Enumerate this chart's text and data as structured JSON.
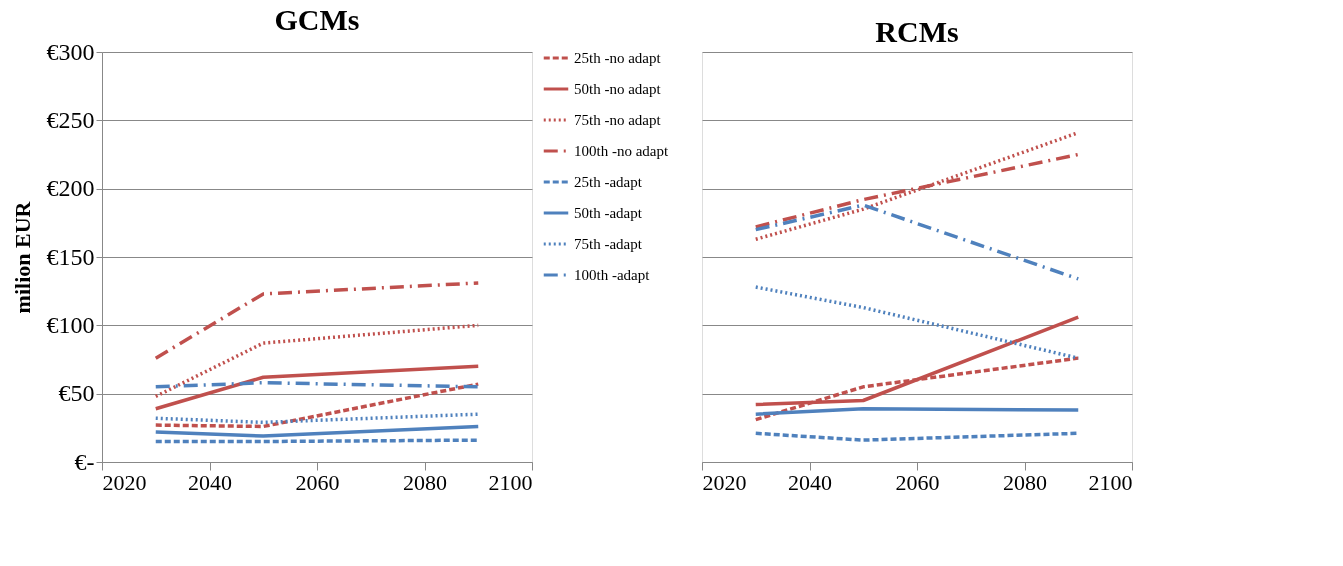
{
  "chart_data": [
    {
      "type": "line",
      "title": "GCMs",
      "ylabel": "milion EUR",
      "x": [
        2030,
        2050,
        2090
      ],
      "xlim": [
        2020,
        2100
      ],
      "xticks": [
        2020,
        2040,
        2060,
        2080,
        2100
      ],
      "ylim": [
        0,
        300
      ],
      "yticks": [
        {
          "value": 0,
          "label": "€-"
        },
        {
          "value": 50,
          "label": "€50"
        },
        {
          "value": 100,
          "label": "€100"
        },
        {
          "value": 150,
          "label": "€150"
        },
        {
          "value": 200,
          "label": "€200"
        },
        {
          "value": 250,
          "label": "€250"
        },
        {
          "value": 300,
          "label": "€300"
        }
      ],
      "grid": "y",
      "legend": "top right",
      "marker": "none",
      "series": [
        {
          "name": "25th -no adapt",
          "color": "#c0504d",
          "line_style": "dashed",
          "values": [
            27,
            26,
            57
          ]
        },
        {
          "name": "50th -no adapt",
          "color": "#c0504d",
          "line_style": "solid",
          "values": [
            39,
            62,
            70
          ]
        },
        {
          "name": "75th -no adapt",
          "color": "#c0504d",
          "line_style": "dotted",
          "values": [
            48,
            87,
            100
          ]
        },
        {
          "name": "100th -no adapt",
          "color": "#c0504d",
          "line_style": "dashdot",
          "values": [
            76,
            123,
            131
          ]
        },
        {
          "name": "25th -adapt",
          "color": "#4f81bd",
          "line_style": "dashed",
          "values": [
            15,
            15,
            16
          ]
        },
        {
          "name": "50th -adapt",
          "color": "#4f81bd",
          "line_style": "solid",
          "values": [
            22,
            19,
            26
          ]
        },
        {
          "name": "75th -adapt",
          "color": "#4f81bd",
          "line_style": "dotted",
          "values": [
            32,
            29,
            35
          ]
        },
        {
          "name": "100th -adapt",
          "color": "#4f81bd",
          "line_style": "dashdot",
          "values": [
            55,
            58,
            55
          ]
        }
      ]
    },
    {
      "type": "line",
      "title": "RCMs",
      "x": [
        2030,
        2050,
        2090
      ],
      "xlim": [
        2020,
        2100
      ],
      "xticks": [
        2020,
        2040,
        2060,
        2080,
        2100
      ],
      "ylim": [
        0,
        300
      ],
      "yticks": [
        0,
        50,
        100,
        150,
        200,
        250,
        300
      ],
      "grid": "y",
      "tick_labels": "x",
      "marker": "none",
      "series": [
        {
          "color": "#c0504d",
          "line_style": "dashed",
          "values": [
            31,
            55,
            76
          ]
        },
        {
          "color": "#c0504d",
          "line_style": "solid",
          "values": [
            42,
            45,
            106
          ]
        },
        {
          "color": "#c0504d",
          "line_style": "dotted",
          "values": [
            163,
            185,
            241
          ]
        },
        {
          "color": "#c0504d",
          "line_style": "dashdot",
          "values": [
            172,
            192,
            225
          ]
        },
        {
          "color": "#4f81bd",
          "line_style": "dashed",
          "values": [
            21,
            16,
            21
          ]
        },
        {
          "color": "#4f81bd",
          "line_style": "solid",
          "values": [
            35,
            39,
            38
          ]
        },
        {
          "color": "#4f81bd",
          "line_style": "dotted",
          "values": [
            128,
            113,
            76
          ]
        },
        {
          "color": "#4f81bd",
          "line_style": "dashdot",
          "values": [
            170,
            188,
            134
          ]
        }
      ]
    }
  ]
}
